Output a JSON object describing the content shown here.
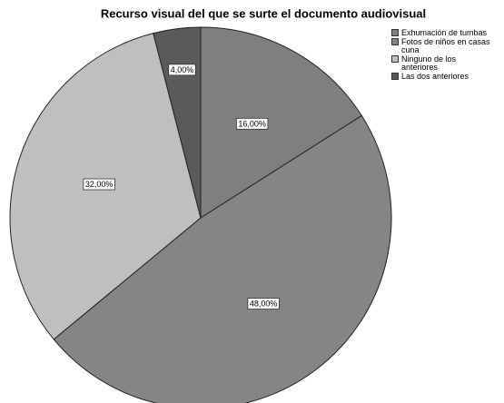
{
  "chart_data": {
    "type": "pie",
    "title": "Recurso visual del que se surte el documento audiovisual",
    "categories": [
      "Exhumación de tumbas",
      "Fotos de niños en casas cuna",
      "Ninguno de los anteriores",
      "Las dos anteriores"
    ],
    "values": [
      16,
      48,
      32,
      4
    ],
    "value_labels": [
      "16,00%",
      "48,00%",
      "32,00%",
      "4,00%"
    ],
    "colors": [
      "#7f7f7f",
      "#858585",
      "#bfbfbf",
      "#5a5a5a"
    ],
    "legend": "top-right"
  }
}
